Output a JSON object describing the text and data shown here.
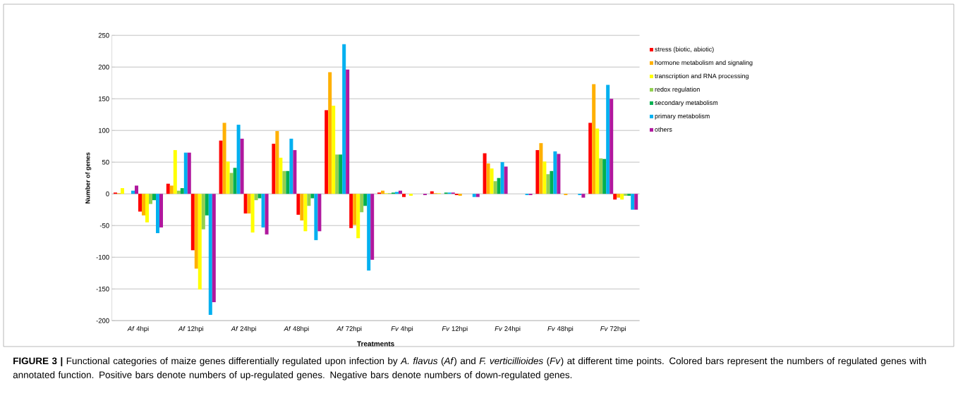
{
  "chart_data": {
    "type": "bar",
    "categories": [
      "*Af* 4hpi",
      "*Af* 12hpi",
      "*Af* 24hpi",
      "*Af* 48hpi",
      "*Af* 72hpi",
      "*Fv* 4hpi",
      "*Fv* 12hpi",
      "*Fv* 24hpi",
      "*Fv* 48hpi",
      "*Fv* 72hpi"
    ],
    "series": [
      {
        "name": "stress (biotic, abiotic)",
        "color": "#ff0000",
        "values": [
          2,
          16,
          84,
          79,
          132,
          2,
          4,
          64,
          69,
          112
        ]
      },
      {
        "name": "hormone metabolism and signaling",
        "color": "#ffb000",
        "values": [
          1,
          13,
          112,
          99,
          192,
          5,
          1,
          48,
          80,
          173
        ]
      },
      {
        "name": "transcription and RNA processing",
        "color": "#ffff00",
        "values": [
          9,
          69,
          51,
          57,
          139,
          1,
          1,
          40,
          51,
          103
        ]
      },
      {
        "name": "redox regulation",
        "color": "#92d050",
        "values": [
          0,
          5,
          33,
          36,
          62,
          1,
          0,
          20,
          31,
          56
        ]
      },
      {
        "name": "secondary metabolism",
        "color": "#00b050",
        "values": [
          0,
          9,
          41,
          36,
          62,
          2,
          2,
          25,
          36,
          55
        ]
      },
      {
        "name": "primary metabolism",
        "color": "#00b0f0",
        "values": [
          5,
          65,
          109,
          87,
          236,
          3,
          2,
          50,
          67,
          172
        ]
      },
      {
        "name": "others",
        "color": "#b0189e",
        "values": [
          13,
          65,
          87,
          69,
          196,
          5,
          2,
          43,
          63,
          150
        ]
      },
      {
        "color": "#ff0000",
        "values": [
          -28,
          -89,
          -31,
          -33,
          -54,
          -5,
          -2,
          0,
          0,
          -9
        ]
      },
      {
        "color": "#ffb000",
        "values": [
          -34,
          -118,
          -31,
          -42,
          -49,
          0,
          -3,
          0,
          -2,
          -6
        ]
      },
      {
        "color": "#ffff00",
        "values": [
          -45,
          -151,
          -61,
          -59,
          -70,
          -3,
          0,
          0,
          0,
          -9
        ]
      },
      {
        "color": "#92d050",
        "values": [
          -16,
          -56,
          -10,
          -19,
          -29,
          0,
          0,
          0,
          0,
          -3
        ]
      },
      {
        "color": "#00b050",
        "values": [
          -10,
          -34,
          -7,
          -7,
          -19,
          0,
          0,
          0,
          0,
          -3
        ]
      },
      {
        "color": "#00b0f0",
        "values": [
          -62,
          -191,
          -53,
          -73,
          -121,
          0,
          -5,
          -2,
          -2,
          -25
        ]
      },
      {
        "color": "#b0189e",
        "values": [
          -53,
          -171,
          -64,
          -59,
          -104,
          -2,
          -5,
          -2,
          -6,
          -25
        ]
      }
    ],
    "ylim": [
      -200,
      250
    ],
    "yticks": [
      -200,
      -150,
      -100,
      -50,
      0,
      50,
      100,
      150,
      200,
      250
    ],
    "grid": "y",
    "legend": "right",
    "xlabel": "Treatments",
    "ylabel": "Number of genes",
    "annotations": [
      "**FIGURE 3 |** Functional categories of maize genes differentially regulated upon infection by *A. flavus* (*Af*) and *F. verticillioides* (*Fv*) at different time points. Colored bars represent the numbers of regulated genes with annotated function. Positive bars denote numbers of up-regulated genes. Negative bars denote numbers of down-regulated genes."
    ]
  }
}
